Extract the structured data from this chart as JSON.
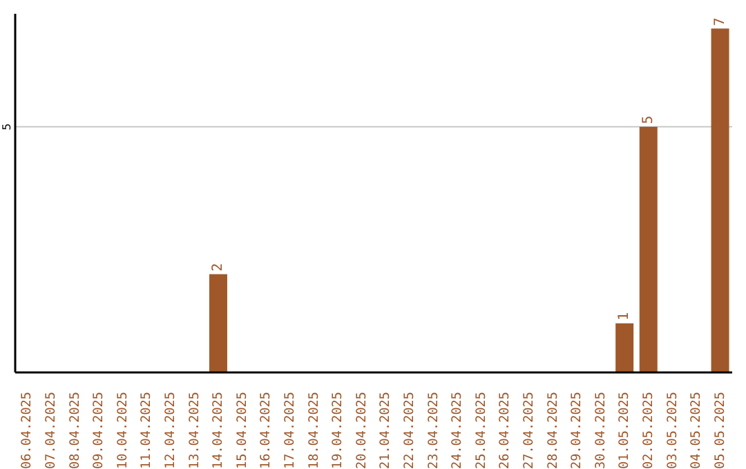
{
  "chart_data": {
    "type": "bar",
    "categories": [
      "06.04.2025",
      "07.04.2025",
      "08.04.2025",
      "09.04.2025",
      "10.04.2025",
      "11.04.2025",
      "12.04.2025",
      "13.04.2025",
      "14.04.2025",
      "15.04.2025",
      "16.04.2025",
      "17.04.2025",
      "18.04.2025",
      "19.04.2025",
      "20.04.2025",
      "21.04.2025",
      "22.04.2025",
      "23.04.2025",
      "24.04.2025",
      "25.04.2025",
      "26.04.2025",
      "27.04.2025",
      "28.04.2025",
      "29.04.2025",
      "30.04.2025",
      "01.05.2025",
      "02.05.2025",
      "03.05.2025",
      "04.05.2025",
      "05.05.2025"
    ],
    "values": [
      0,
      0,
      0,
      0,
      0,
      0,
      0,
      0,
      2,
      0,
      0,
      0,
      0,
      0,
      0,
      0,
      0,
      0,
      0,
      0,
      0,
      0,
      0,
      0,
      0,
      1,
      5,
      0,
      0,
      7
    ],
    "value_labels": [
      null,
      null,
      null,
      null,
      null,
      null,
      null,
      null,
      "2",
      null,
      null,
      null,
      null,
      null,
      null,
      null,
      null,
      null,
      null,
      null,
      null,
      null,
      null,
      null,
      null,
      "1",
      "5",
      null,
      null,
      "7"
    ],
    "color": "#a0582a",
    "ylim": [
      0,
      7.3
    ],
    "yticks": [
      5
    ],
    "grid": "y"
  }
}
